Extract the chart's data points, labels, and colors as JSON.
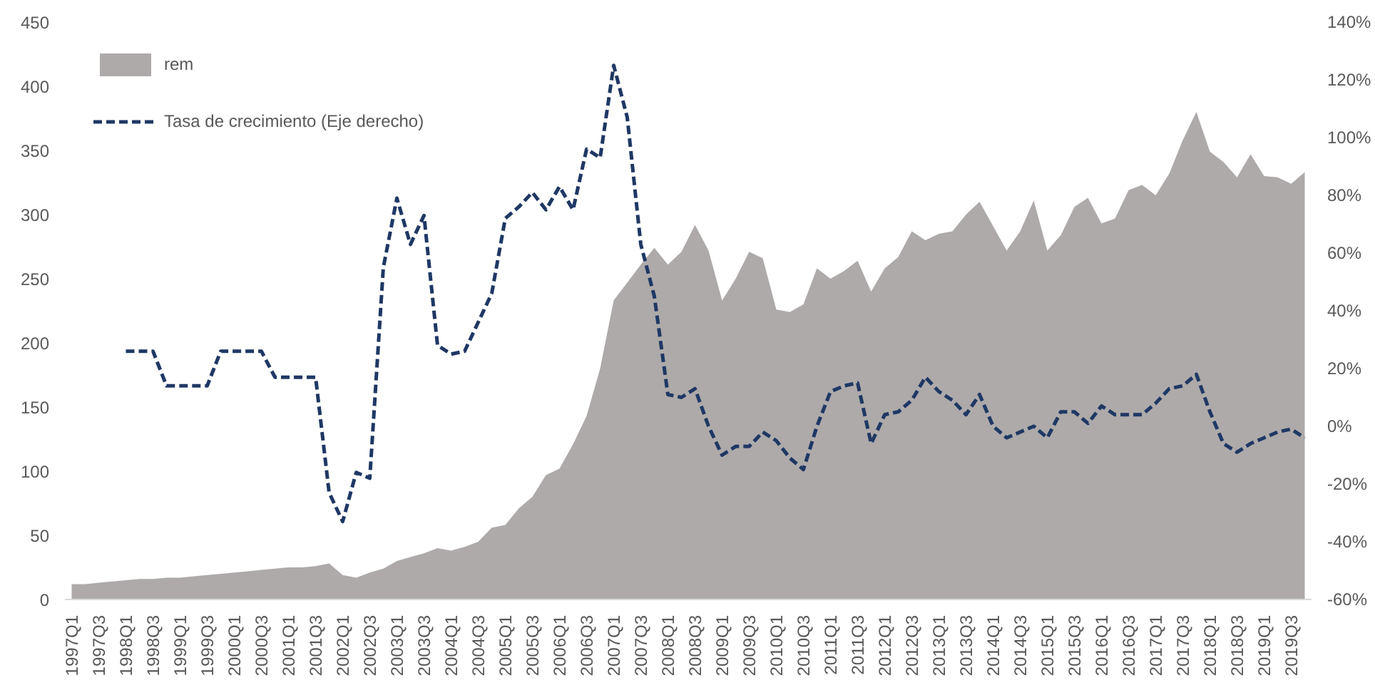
{
  "chart_data": {
    "type": "area",
    "categories": [
      "1997Q1",
      null,
      "1997Q3",
      null,
      "1998Q1",
      null,
      "1998Q3",
      null,
      "1999Q1",
      null,
      "1999Q3",
      null,
      "2000Q1",
      null,
      "2000Q3",
      null,
      "2001Q1",
      null,
      "2001Q3",
      null,
      "2002Q1",
      null,
      "2002Q3",
      null,
      "2003Q1",
      null,
      "2003Q3",
      null,
      "2004Q1",
      null,
      "2004Q3",
      null,
      "2005Q1",
      null,
      "2005Q3",
      null,
      "2006Q1",
      null,
      "2006Q3",
      null,
      "2007Q1",
      null,
      "2007Q3",
      null,
      "2008Q1",
      null,
      "2008Q3",
      null,
      "2009Q1",
      null,
      "2009Q3",
      null,
      "2010Q1",
      null,
      "2010Q3",
      null,
      "2011Q1",
      null,
      "2011Q3",
      null,
      "2012Q1",
      null,
      "2012Q3",
      null,
      "2013Q1",
      null,
      "2013Q3",
      null,
      "2014Q1",
      null,
      "2014Q3",
      null,
      "2015Q1",
      null,
      "2015Q3",
      null,
      "2016Q1",
      null,
      "2016Q3",
      null,
      "2017Q1",
      null,
      "2017Q3",
      null,
      "2018Q1",
      null,
      "2018Q3",
      null,
      "2019Q1",
      null,
      "2019Q3",
      null
    ],
    "series": [
      {
        "name": "rem",
        "color": "#aeaaaa",
        "values": [
          12,
          12,
          13,
          14,
          15,
          16,
          16,
          17,
          17,
          18,
          19,
          20,
          21,
          22,
          23,
          24,
          25,
          25,
          26,
          28,
          19,
          17,
          21,
          24,
          30,
          33,
          36,
          40,
          38,
          41,
          45,
          56,
          58,
          71,
          80,
          97,
          102,
          121,
          143,
          180,
          233,
          247,
          261,
          274,
          261,
          271,
          292,
          272,
          233,
          250,
          271,
          266,
          226,
          224,
          230,
          258,
          250,
          256,
          264,
          240,
          258,
          267,
          287,
          280,
          285,
          287,
          300,
          310,
          291,
          272,
          287,
          311,
          272,
          284,
          306,
          313,
          293,
          297,
          319,
          323,
          315,
          332,
          358,
          380,
          349,
          341,
          329,
          347,
          330,
          329,
          324,
          333
        ]
      },
      {
        "name": "Tasa de crecimiento (Eje derecho)",
        "type": "line",
        "axis": "y2",
        "color": "#1f3864",
        "line_style": "dashed",
        "values": [
          null,
          null,
          null,
          null,
          26,
          26,
          26,
          14,
          14,
          14,
          14,
          26,
          26,
          26,
          26,
          17,
          17,
          17,
          17,
          -23,
          -33,
          -16,
          -18,
          55,
          79,
          63,
          73,
          28,
          25,
          26,
          36,
          46,
          72,
          76,
          81,
          75,
          83,
          75,
          96,
          93,
          125,
          107,
          63,
          45,
          11,
          10,
          13,
          0,
          -10,
          -7,
          -7,
          -2,
          -5,
          -11,
          -15,
          0,
          12,
          14,
          15,
          -6,
          4,
          5,
          9,
          17,
          12,
          9,
          4,
          11,
          0,
          -4,
          -2,
          0,
          -4,
          5,
          5,
          1,
          7,
          4,
          4,
          4,
          8,
          13,
          14,
          18,
          5,
          -6,
          -9,
          -6,
          -4,
          -2,
          -1,
          -4
        ]
      }
    ],
    "ylim": [
      0,
      450
    ],
    "yticks": [
      0,
      50,
      100,
      150,
      200,
      250,
      300,
      350,
      400,
      450
    ],
    "y2lim": [
      -60,
      140
    ],
    "y2ticks": [
      {
        "value": -60,
        "label": "-60%"
      },
      {
        "value": -40,
        "label": "-40%"
      },
      {
        "value": -20,
        "label": "-20%"
      },
      {
        "value": 0,
        "label": "0%"
      },
      {
        "value": 20,
        "label": "20%"
      },
      {
        "value": 40,
        "label": "40%"
      },
      {
        "value": 60,
        "label": "60%"
      },
      {
        "value": 80,
        "label": "80%"
      },
      {
        "value": 100,
        "label": "100%"
      },
      {
        "value": 120,
        "label": "120%"
      },
      {
        "value": 140,
        "label": "140%"
      }
    ],
    "grid": false,
    "legend": "top left"
  }
}
